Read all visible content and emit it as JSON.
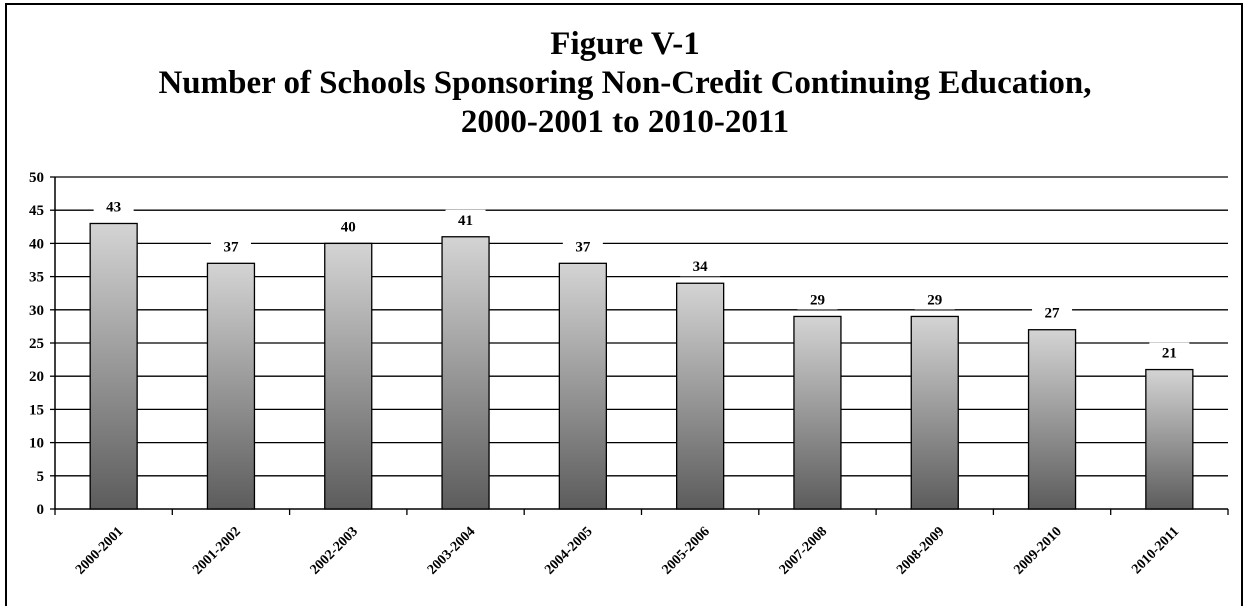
{
  "chart_data": {
    "type": "bar",
    "title": "Figure V-1",
    "subtitle": "Number of Schools Sponsoring Non-Credit Continuing Education,",
    "subtitle2": "2000-2001 to 2010-2011",
    "categories": [
      "2000-2001",
      "2001-2002",
      "2002-2003",
      "2003-2004",
      "2004-2005",
      "2005-2006",
      "2007-2008",
      "2008-2009",
      "2009-2010",
      "2010-2011"
    ],
    "values": [
      43,
      37,
      40,
      41,
      37,
      34,
      29,
      29,
      27,
      21
    ],
    "ylim": [
      0,
      50
    ],
    "yticks": [
      0,
      5,
      10,
      15,
      20,
      25,
      30,
      35,
      40,
      45,
      50
    ],
    "grid": true,
    "xlabel": "",
    "ylabel": ""
  }
}
